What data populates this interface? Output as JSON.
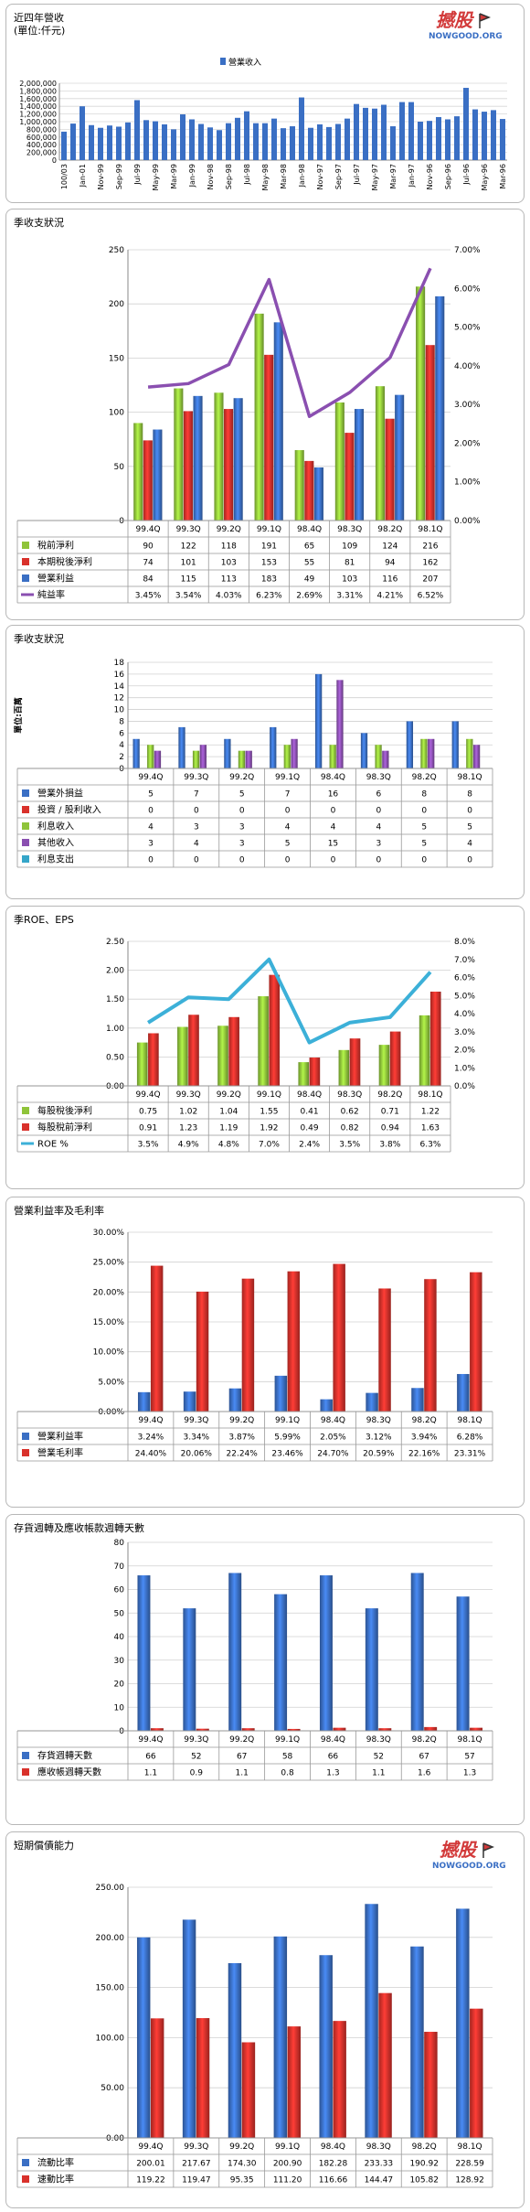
{
  "watermark": {
    "line1": "撼股",
    "line2": "NOWGOOD.ORG"
  },
  "charts": [
    {
      "id": "monthly",
      "type": "bar",
      "title": "近四年營收",
      "subtitle": "(單位:仟元)",
      "legend": "營業收入",
      "categories": [
        "100/03",
        "",
        "Jan-01",
        "",
        "Nov-99",
        "",
        "Sep-99",
        "",
        "Jul-99",
        "",
        "May-99",
        "",
        "Mar-99",
        "",
        "Jan-99",
        "",
        "Nov-98",
        "",
        "Sep-98",
        "",
        "Jul-98",
        "",
        "May-98",
        "",
        "Mar-98",
        "",
        "Jan-98",
        "",
        "Nov-97",
        "",
        "Sep-97",
        "",
        "Jul-97",
        "",
        "May-97",
        "",
        "Mar-97",
        "",
        "Jan-97",
        "",
        "Nov-96",
        "",
        "Sep-96",
        "",
        "Jul-96",
        "",
        "May-96",
        "",
        "Mar-96"
      ],
      "values": [
        740000,
        950000,
        1400000,
        910000,
        840000,
        900000,
        870000,
        980000,
        1560000,
        1040000,
        1010000,
        930000,
        800000,
        1190000,
        1060000,
        940000,
        850000,
        780000,
        960000,
        1100000,
        1270000,
        960000,
        960000,
        1080000,
        830000,
        880000,
        1630000,
        840000,
        930000,
        860000,
        940000,
        1080000,
        1460000,
        1360000,
        1340000,
        1440000,
        880000,
        1510000,
        1510000,
        1000000,
        1020000,
        1120000,
        1060000,
        1140000,
        1880000,
        1320000,
        1260000,
        1300000,
        1070000
      ],
      "ylim": [
        0,
        2000000
      ],
      "yticks": [
        "0",
        "200,000",
        "400,000",
        "600,000",
        "800,000",
        "1,000,000",
        "1,200,000",
        "1,400,000",
        "1,600,000",
        "1,800,000",
        "2,000,000"
      ]
    },
    {
      "id": "quarterly-income",
      "type": "bar+line",
      "title": "季收支狀況",
      "categories": [
        "99.4Q",
        "99.3Q",
        "99.2Q",
        "99.1Q",
        "98.4Q",
        "98.3Q",
        "98.2Q",
        "98.1Q"
      ],
      "ylim": [
        0,
        250
      ],
      "yticks": [
        "0",
        "50",
        "100",
        "150",
        "200",
        "250"
      ],
      "y2lim": [
        0,
        7
      ],
      "y2ticks": [
        "0.00%",
        "1.00%",
        "2.00%",
        "3.00%",
        "4.00%",
        "5.00%",
        "6.00%",
        "7.00%"
      ],
      "series": [
        {
          "name": "稅前淨利",
          "kind": "bar",
          "color": "#8fc43a",
          "labels": [
            "90",
            "122",
            "118",
            "191",
            "65",
            "109",
            "124",
            "216"
          ],
          "values": [
            90,
            122,
            118,
            191,
            65,
            109,
            124,
            216
          ]
        },
        {
          "name": "本期稅後淨利",
          "kind": "bar",
          "color": "#d9312b",
          "labels": [
            "74",
            "101",
            "103",
            "153",
            "55",
            "81",
            "94",
            "162"
          ],
          "values": [
            74,
            101,
            103,
            153,
            55,
            81,
            94,
            162
          ]
        },
        {
          "name": "營業利益",
          "kind": "bar",
          "color": "#3a6fc4",
          "labels": [
            "84",
            "115",
            "113",
            "183",
            "49",
            "103",
            "116",
            "207"
          ],
          "values": [
            84,
            115,
            113,
            183,
            49,
            103,
            116,
            207
          ]
        },
        {
          "name": "純益率",
          "kind": "line",
          "color": "#8a4fb0",
          "labels": [
            "3.45%",
            "3.54%",
            "4.03%",
            "6.23%",
            "2.69%",
            "3.31%",
            "4.21%",
            "6.52%"
          ],
          "values": [
            3.45,
            3.54,
            4.03,
            6.23,
            2.69,
            3.31,
            4.21,
            6.52
          ]
        }
      ]
    },
    {
      "id": "quarterly-other",
      "type": "bar",
      "title": "季收支狀況",
      "ylabel": "單位:百萬",
      "categories": [
        "99.4Q",
        "99.3Q",
        "99.2Q",
        "99.1Q",
        "98.4Q",
        "98.3Q",
        "98.2Q",
        "98.1Q"
      ],
      "ylim": [
        0,
        18
      ],
      "yticks": [
        "0",
        "2",
        "4",
        "6",
        "8",
        "10",
        "12",
        "14",
        "16",
        "18"
      ],
      "series": [
        {
          "name": "營業外損益",
          "kind": "bar",
          "color": "#3a6fc4",
          "labels": [
            "5",
            "7",
            "5",
            "7",
            "16",
            "6",
            "8",
            "8"
          ],
          "values": [
            5,
            7,
            5,
            7,
            16,
            6,
            8,
            8
          ]
        },
        {
          "name": "投資 / 股利收入",
          "kind": "bar",
          "color": "#d9312b",
          "labels": [
            "0",
            "0",
            "0",
            "0",
            "0",
            "0",
            "0",
            "0"
          ],
          "values": [
            0,
            0,
            0,
            0,
            0,
            0,
            0,
            0
          ]
        },
        {
          "name": "利息收入",
          "kind": "bar",
          "color": "#8fc43a",
          "labels": [
            "4",
            "3",
            "3",
            "4",
            "4",
            "4",
            "5",
            "5"
          ],
          "values": [
            4,
            3,
            3,
            4,
            4,
            4,
            5,
            5
          ]
        },
        {
          "name": "其他收入",
          "kind": "bar",
          "color": "#8a4fb0",
          "labels": [
            "3",
            "4",
            "3",
            "5",
            "15",
            "3",
            "5",
            "4"
          ],
          "values": [
            3,
            4,
            3,
            5,
            15,
            3,
            5,
            4
          ]
        },
        {
          "name": "利息支出",
          "kind": "bar",
          "color": "#35a6c9",
          "labels": [
            "0",
            "0",
            "0",
            "0",
            "0",
            "0",
            "0",
            "0"
          ],
          "values": [
            0,
            0,
            0,
            0,
            0,
            0,
            0,
            0
          ]
        }
      ]
    },
    {
      "id": "roe-eps",
      "type": "bar+line",
      "title": "季ROE、EPS",
      "categories": [
        "99.4Q",
        "99.3Q",
        "99.2Q",
        "99.1Q",
        "98.4Q",
        "98.3Q",
        "98.2Q",
        "98.1Q"
      ],
      "ylim": [
        0,
        2.5
      ],
      "yticks": [
        "0.00",
        "0.50",
        "1.00",
        "1.50",
        "2.00",
        "2.50"
      ],
      "y2lim": [
        0,
        8
      ],
      "y2ticks": [
        "0.0%",
        "1.0%",
        "2.0%",
        "3.0%",
        "4.0%",
        "5.0%",
        "6.0%",
        "7.0%",
        "8.0%"
      ],
      "series": [
        {
          "name": "每股稅後淨利",
          "kind": "bar",
          "color": "#8fc43a",
          "labels": [
            "0.75",
            "1.02",
            "1.04",
            "1.55",
            "0.41",
            "0.62",
            "0.71",
            "1.22"
          ],
          "values": [
            0.75,
            1.02,
            1.04,
            1.55,
            0.41,
            0.62,
            0.71,
            1.22
          ]
        },
        {
          "name": "每股稅前淨利",
          "kind": "bar",
          "color": "#d9312b",
          "labels": [
            "0.91",
            "1.23",
            "1.19",
            "1.92",
            "0.49",
            "0.82",
            "0.94",
            "1.63"
          ],
          "values": [
            0.91,
            1.23,
            1.19,
            1.92,
            0.49,
            0.82,
            0.94,
            1.63
          ]
        },
        {
          "name": "ROE %",
          "kind": "line",
          "color": "#3cb0d8",
          "labels": [
            "3.5%",
            "4.9%",
            "4.8%",
            "7.0%",
            "2.4%",
            "3.5%",
            "3.8%",
            "6.3%"
          ],
          "values": [
            3.5,
            4.9,
            4.8,
            7.0,
            2.4,
            3.5,
            3.8,
            6.3
          ]
        }
      ]
    },
    {
      "id": "margins",
      "type": "bar",
      "title": "營業利益率及毛利率",
      "categories": [
        "99.4Q",
        "99.3Q",
        "99.2Q",
        "99.1Q",
        "98.4Q",
        "98.3Q",
        "98.2Q",
        "98.1Q"
      ],
      "ylim": [
        0,
        30
      ],
      "yticks": [
        "0.00%",
        "5.00%",
        "10.00%",
        "15.00%",
        "20.00%",
        "25.00%",
        "30.00%"
      ],
      "series": [
        {
          "name": "營業利益率",
          "kind": "bar",
          "color": "#3a6fc4",
          "labels": [
            "3.24%",
            "3.34%",
            "3.87%",
            "5.99%",
            "2.05%",
            "3.12%",
            "3.94%",
            "6.28%"
          ],
          "values": [
            3.24,
            3.34,
            3.87,
            5.99,
            2.05,
            3.12,
            3.94,
            6.28
          ]
        },
        {
          "name": "營業毛利率",
          "kind": "bar",
          "color": "#d9312b",
          "labels": [
            "24.40%",
            "20.06%",
            "22.24%",
            "23.46%",
            "24.70%",
            "20.59%",
            "22.16%",
            "23.31%"
          ],
          "values": [
            24.4,
            20.06,
            22.24,
            23.46,
            24.7,
            20.59,
            22.16,
            23.31
          ]
        }
      ]
    },
    {
      "id": "turnover",
      "type": "bar",
      "title": "存貨週轉及應收帳款週轉天數",
      "categories": [
        "99.4Q",
        "99.3Q",
        "99.2Q",
        "99.1Q",
        "98.4Q",
        "98.3Q",
        "98.2Q",
        "98.1Q"
      ],
      "ylim": [
        0,
        80
      ],
      "yticks": [
        "0",
        "10",
        "20",
        "30",
        "40",
        "50",
        "60",
        "70",
        "80"
      ],
      "series": [
        {
          "name": "存貨週轉天數",
          "kind": "bar",
          "color": "#3a6fc4",
          "labels": [
            "66",
            "52",
            "67",
            "58",
            "66",
            "52",
            "67",
            "57"
          ],
          "values": [
            66,
            52,
            67,
            58,
            66,
            52,
            67,
            57
          ]
        },
        {
          "name": "應收帳週轉天數",
          "kind": "bar",
          "color": "#d9312b",
          "labels": [
            "1.1",
            "0.9",
            "1.1",
            "0.8",
            "1.3",
            "1.1",
            "1.6",
            "1.3"
          ],
          "values": [
            1.1,
            0.9,
            1.1,
            0.8,
            1.3,
            1.1,
            1.6,
            1.3
          ]
        }
      ]
    },
    {
      "id": "solvency",
      "type": "bar",
      "title": "短期償債能力",
      "categories": [
        "99.4Q",
        "99.3Q",
        "99.2Q",
        "99.1Q",
        "98.4Q",
        "98.3Q",
        "98.2Q",
        "98.1Q"
      ],
      "ylim": [
        0,
        250
      ],
      "yticks": [
        "0.00",
        "50.00",
        "100.00",
        "150.00",
        "200.00",
        "250.00"
      ],
      "series": [
        {
          "name": "流動比率",
          "kind": "bar",
          "color": "#3a6fc4",
          "labels": [
            "200.01",
            "217.67",
            "174.30",
            "200.90",
            "182.28",
            "233.33",
            "190.92",
            "228.59"
          ],
          "values": [
            200.01,
            217.67,
            174.3,
            200.9,
            182.28,
            233.33,
            190.92,
            228.59
          ]
        },
        {
          "name": "速動比率",
          "kind": "bar",
          "color": "#d9312b",
          "labels": [
            "119.22",
            "119.47",
            "95.35",
            "111.20",
            "116.66",
            "144.47",
            "105.82",
            "128.92"
          ],
          "values": [
            119.22,
            119.47,
            95.35,
            111.2,
            116.66,
            144.47,
            105.82,
            128.92
          ]
        }
      ]
    }
  ],
  "chart_data": [
    {
      "type": "bar",
      "title": "近四年營收",
      "subtitle": "(單位:仟元)",
      "series": [
        {
          "name": "營業收入"
        }
      ]
    },
    {
      "type": "bar",
      "title": "季收支狀況",
      "series": [
        {
          "name": "稅前淨利"
        },
        {
          "name": "本期稅後淨利"
        },
        {
          "name": "營業利益"
        },
        {
          "name": "純益率"
        }
      ]
    },
    {
      "type": "bar",
      "title": "季收支狀況",
      "ylabel": "單位:百萬"
    },
    {
      "type": "bar",
      "title": "季ROE、EPS"
    },
    {
      "type": "bar",
      "title": "營業利益率及毛利率"
    },
    {
      "type": "bar",
      "title": "存貨週轉及應收帳款週轉天數"
    },
    {
      "type": "bar",
      "title": "短期償債能力"
    }
  ]
}
